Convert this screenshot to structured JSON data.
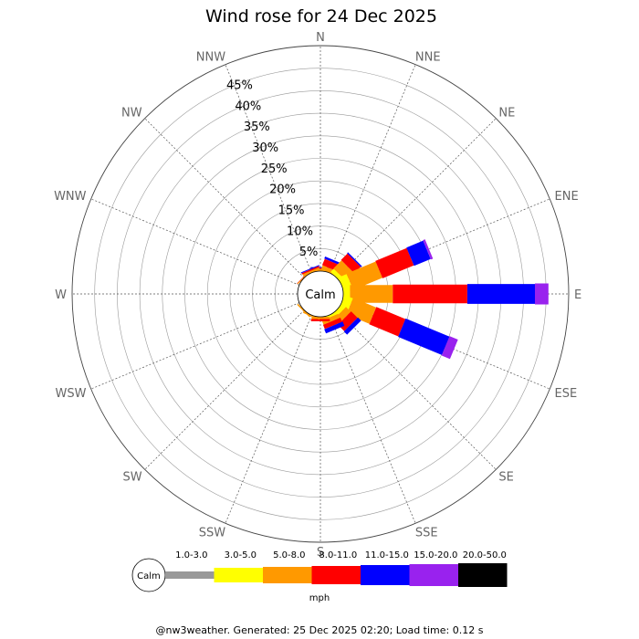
{
  "chart_data": {
    "type": "windrose",
    "title": "Wind rose for 24 Dec 2025",
    "center_label": "Calm",
    "directions": [
      "N",
      "NNE",
      "NE",
      "ENE",
      "E",
      "ESE",
      "SE",
      "SSE",
      "S",
      "SSW",
      "SW",
      "WSW",
      "W",
      "WNW",
      "NW",
      "NNW"
    ],
    "radial_ticks": [
      5,
      10,
      15,
      20,
      25,
      30,
      35,
      40,
      45
    ],
    "radial_tick_labels": [
      "5%",
      "10%",
      "15%",
      "20%",
      "25%",
      "30%",
      "35%",
      "40%",
      "45%"
    ],
    "radial_max": 50,
    "speed_unit": "mph",
    "speed_bins": [
      {
        "label": "1.0-3.0",
        "color": "#999999"
      },
      {
        "label": "3.0-5.0",
        "color": "#ffff00"
      },
      {
        "label": "5.0-8.0",
        "color": "#ff9900"
      },
      {
        "label": "8.0-11.0",
        "color": "#ff0000"
      },
      {
        "label": "11.0-15.0",
        "color": "#0000ff"
      },
      {
        "label": "15.0-20.0",
        "color": "#9922ee"
      },
      {
        "label": "20.0-50.0",
        "color": "#000000"
      }
    ],
    "series": [
      {
        "direction": "N",
        "cumulative": [
          0,
          0,
          0.5,
          0.7,
          0.9,
          0.9,
          0.9
        ]
      },
      {
        "direction": "NNE",
        "cumulative": [
          0,
          0,
          1.0,
          2.5,
          3.0,
          3.0,
          3.0
        ]
      },
      {
        "direction": "NE",
        "cumulative": [
          0,
          1.0,
          3.5,
          5.5,
          5.8,
          5.8,
          5.8
        ]
      },
      {
        "direction": "ENE",
        "cumulative": [
          0,
          2.0,
          9.0,
          16.5,
          20.5,
          21.0,
          21.0
        ]
      },
      {
        "direction": "E",
        "cumulative": [
          0,
          1.5,
          11.0,
          27.5,
          42.5,
          45.5,
          45.5
        ]
      },
      {
        "direction": "ESE",
        "cumulative": [
          0,
          2.0,
          7.5,
          14.5,
          25.0,
          27.0,
          27.0
        ]
      },
      {
        "direction": "SE",
        "cumulative": [
          0,
          1.0,
          2.5,
          4.5,
          5.5,
          5.5,
          5.5
        ]
      },
      {
        "direction": "SSE",
        "cumulative": [
          0,
          0.5,
          1.5,
          2.5,
          3.5,
          3.5,
          3.5
        ]
      },
      {
        "direction": "S",
        "cumulative": [
          0,
          0,
          0.5,
          1.0,
          1.0,
          1.0,
          1.0
        ]
      },
      {
        "direction": "SSW",
        "cumulative": [
          0,
          0,
          0.3,
          0.3,
          0.3,
          0.3,
          0.3
        ]
      },
      {
        "direction": "SW",
        "cumulative": [
          0,
          0,
          0.3,
          0.3,
          0.3,
          0.3,
          0.3
        ]
      },
      {
        "direction": "WSW",
        "cumulative": [
          0,
          0,
          0,
          0,
          0,
          0,
          0
        ]
      },
      {
        "direction": "W",
        "cumulative": [
          0,
          0,
          0,
          0,
          0,
          0,
          0
        ]
      },
      {
        "direction": "WNW",
        "cumulative": [
          0,
          0,
          0,
          0,
          0,
          0,
          0
        ]
      },
      {
        "direction": "NW",
        "cumulative": [
          0,
          0,
          0.2,
          0.3,
          0.3,
          0.3,
          0.3
        ]
      },
      {
        "direction": "NNW",
        "cumulative": [
          0,
          0,
          0.5,
          0.8,
          1.0,
          1.0,
          1.0
        ]
      }
    ],
    "grid": true
  },
  "footer": "@nw3weather. Generated: 25 Dec 2025 02:20; Load time: 0.12 s"
}
